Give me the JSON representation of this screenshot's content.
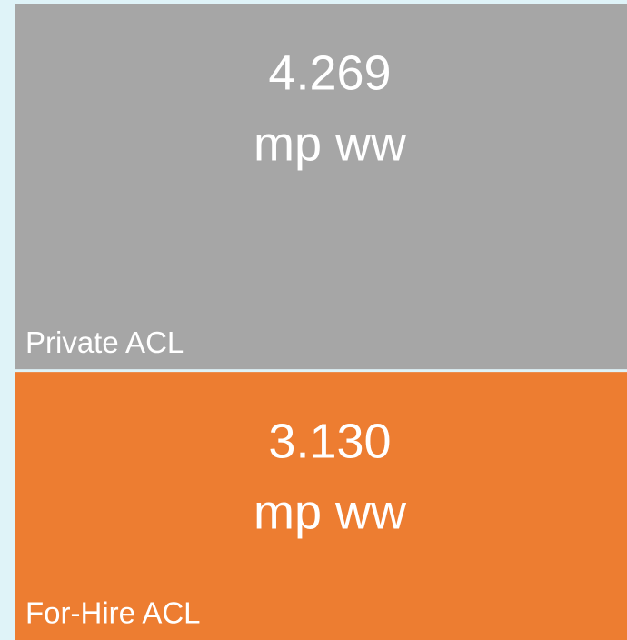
{
  "chart_data": {
    "type": "stacked_bar",
    "series": [
      {
        "name": "Private ACL",
        "color": "#a6a6a6",
        "values": [
          4.269
        ],
        "value_labels": [
          "4.269"
        ],
        "unit": "mp ww"
      },
      {
        "name": "For-Hire ACL",
        "color": "#ed7d31",
        "values": [
          3.13
        ],
        "value_labels": [
          "3.130"
        ],
        "unit": "mp ww"
      }
    ]
  }
}
